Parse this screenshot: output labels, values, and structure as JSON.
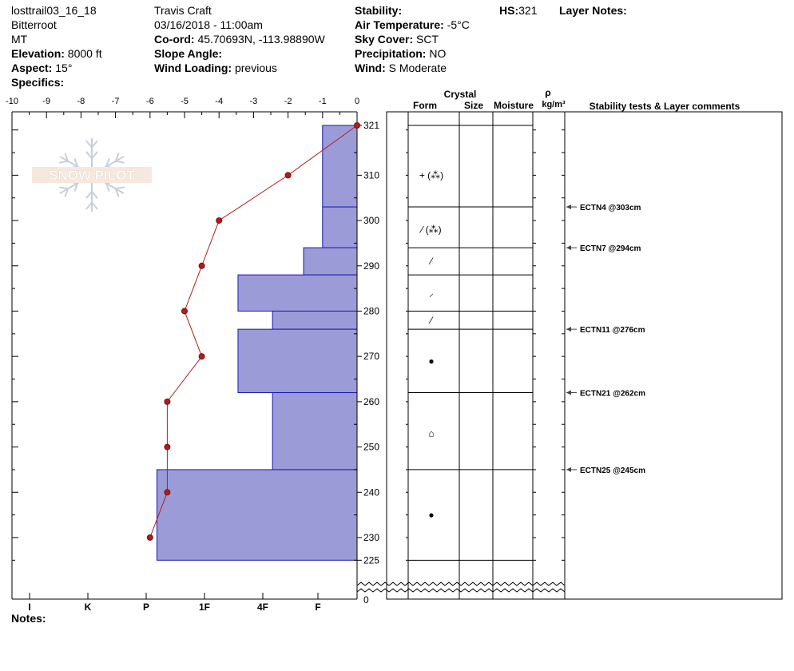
{
  "header": {
    "station": "losttrail03_16_18",
    "range": "Bitterroot",
    "state": "MT",
    "elevation_label": "Elevation:",
    "elevation": "8000 ft",
    "aspect_label": "Aspect:",
    "aspect": "15°",
    "specifics_label": "Specifics:",
    "observer": "Travis  Craft",
    "datetime": "03/16/2018 - 11:00am",
    "coord_label": "Co-ord:",
    "coord": "45.70693N, -113.98890W",
    "slope_label": "Slope Angle:",
    "slope": "",
    "wind_loading_label": "Wind Loading:",
    "wind_loading": "previous",
    "stability_label": "Stability:",
    "stability": "",
    "air_temp_label": "Air Temperature:",
    "air_temp": "-5°C",
    "sky_label": "Sky Cover:",
    "sky": "SCT",
    "precip_label": "Precipitation:",
    "precip": "NO",
    "wind_label": "Wind:",
    "wind": "S Moderate",
    "hs_label": "HS:",
    "hs": "321",
    "layer_notes_label": "Layer Notes:"
  },
  "notes_label": "Notes:",
  "logo_text": "SNOW PILOT",
  "columns": {
    "crystal": "Crystal",
    "form": "Form",
    "size": "Size",
    "moisture": "Moisture",
    "rho": "ρ",
    "density_unit": "kg/m³",
    "stability_comments": "Stability tests & Layer comments"
  },
  "colors": {
    "hardness_fill": "#9b9bd8",
    "hardness_stroke": "#1a1ab0",
    "temp_line": "#b31b1b"
  },
  "chart_data": {
    "type": "bar",
    "temp_axis": {
      "min": -10,
      "max": 0,
      "ticks": [
        -10,
        -9,
        -8,
        -7,
        -6,
        -5,
        -4,
        -3,
        -2,
        -1,
        0
      ]
    },
    "height_axis": {
      "top": 321,
      "bottom_label": "0",
      "ticks": [
        321,
        310,
        300,
        290,
        280,
        270,
        260,
        250,
        240,
        230,
        225
      ],
      "bottom_ground": 225
    },
    "hardness_scale": [
      "I",
      "K",
      "P",
      "1F",
      "4F",
      "F"
    ],
    "hardness_layers": [
      {
        "top": 321,
        "bottom": 303,
        "hardness": "F"
      },
      {
        "top": 303,
        "bottom": 294,
        "hardness": "F"
      },
      {
        "top": 294,
        "bottom": 288,
        "hardness": "F+"
      },
      {
        "top": 288,
        "bottom": 280,
        "hardness": "1F+"
      },
      {
        "top": 280,
        "bottom": 276,
        "hardness": "4F"
      },
      {
        "top": 276,
        "bottom": 262,
        "hardness": "1F+"
      },
      {
        "top": 262,
        "bottom": 245,
        "hardness": "4F"
      },
      {
        "top": 245,
        "bottom": 225,
        "hardness": "P+"
      }
    ],
    "hardness_values": [
      1.0,
      1.0,
      1.55,
      3.45,
      2.45,
      3.45,
      2.45,
      5.8
    ],
    "temperature_profile": [
      {
        "height": 321,
        "temp": 0
      },
      {
        "height": 310,
        "temp": -2
      },
      {
        "height": 300,
        "temp": -4
      },
      {
        "height": 290,
        "temp": -4.5
      },
      {
        "height": 280,
        "temp": -5
      },
      {
        "height": 270,
        "temp": -4.5
      },
      {
        "height": 260,
        "temp": -5.5
      },
      {
        "height": 250,
        "temp": -5.5
      },
      {
        "height": 240,
        "temp": -5.5
      },
      {
        "height": 230,
        "temp": -6
      }
    ],
    "layer_boundaries": [
      321,
      303,
      294,
      288,
      280,
      276,
      262,
      245,
      225
    ],
    "crystal_forms": [
      {
        "height": 310,
        "symbol": "+ (⁂)"
      },
      {
        "height": 298,
        "symbol": "⁄ (⁂)"
      },
      {
        "height": 291,
        "symbol": "⁄"
      },
      {
        "height": 284,
        "symbol": "⸝"
      },
      {
        "height": 278,
        "symbol": "⁄"
      },
      {
        "height": 269,
        "symbol": "●"
      },
      {
        "height": 253,
        "symbol": "⌂"
      },
      {
        "height": 235,
        "symbol": "●"
      }
    ],
    "stability_tests": [
      {
        "height": 303,
        "label": "ECTN4 @303cm"
      },
      {
        "height": 294,
        "label": "ECTN7 @294cm"
      },
      {
        "height": 276,
        "label": "ECTN11 @276cm"
      },
      {
        "height": 262,
        "label": "ECTN21 @262cm"
      },
      {
        "height": 245,
        "label": "ECTN25 @245cm"
      }
    ]
  }
}
